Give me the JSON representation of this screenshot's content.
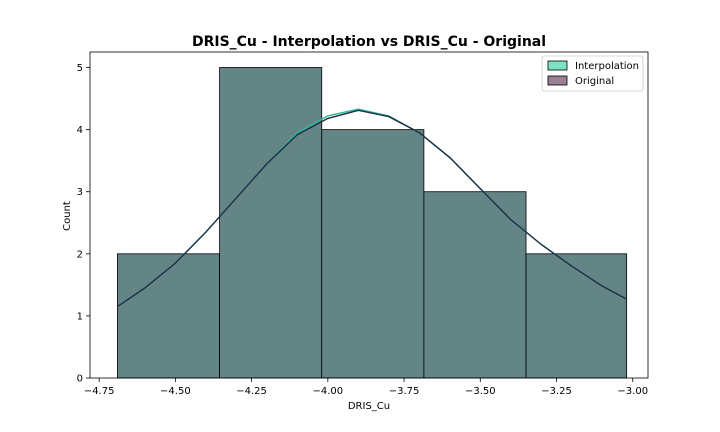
{
  "chart_data": {
    "type": "bar",
    "title": "DRIS_Cu - Interpolation vs DRIS_Cu - Original",
    "xlabel": "DRIS_Cu",
    "ylabel": "Count",
    "xlim": [
      -4.78,
      -2.95
    ],
    "ylim": [
      0,
      5.25
    ],
    "x_ticks": [
      -4.75,
      -4.5,
      -4.25,
      -4.0,
      -3.75,
      -3.5,
      -3.25,
      -3.0
    ],
    "x_tick_labels": [
      "−4.75",
      "−4.50",
      "−4.25",
      "−4.00",
      "−3.75",
      "−3.50",
      "−3.25",
      "−3.00"
    ],
    "y_ticks": [
      0,
      1,
      2,
      3,
      4,
      5
    ],
    "y_tick_labels": [
      "0",
      "1",
      "2",
      "3",
      "4",
      "5"
    ],
    "legend_position": "top-right",
    "grid": false,
    "bin_edges": [
      -4.69,
      -4.355,
      -4.02,
      -3.685,
      -3.35,
      -3.02
    ],
    "series": [
      {
        "name": "Interpolation",
        "color": "#7de2c4",
        "counts": [
          2,
          5,
          4,
          3,
          2
        ],
        "kde": {
          "x": [
            -4.69,
            -4.6,
            -4.5,
            -4.4,
            -4.3,
            -4.2,
            -4.1,
            -4.0,
            -3.9,
            -3.8,
            -3.7,
            -3.6,
            -3.5,
            -3.4,
            -3.3,
            -3.2,
            -3.1,
            -3.02
          ],
          "y": [
            1.15,
            1.45,
            1.85,
            2.35,
            2.9,
            3.45,
            3.95,
            4.22,
            4.33,
            4.22,
            3.95,
            3.55,
            3.05,
            2.55,
            2.15,
            1.8,
            1.48,
            1.27
          ]
        }
      },
      {
        "name": "Original",
        "color": "#9a7f95",
        "counts": [
          2,
          5,
          4,
          3,
          2
        ],
        "kde": {
          "x": [
            -4.69,
            -4.6,
            -4.5,
            -4.4,
            -4.3,
            -4.2,
            -4.1,
            -4.0,
            -3.9,
            -3.8,
            -3.7,
            -3.6,
            -3.5,
            -3.4,
            -3.3,
            -3.2,
            -3.1,
            -3.02
          ],
          "y": [
            1.15,
            1.45,
            1.85,
            2.35,
            2.9,
            3.45,
            3.92,
            4.18,
            4.31,
            4.21,
            3.95,
            3.55,
            3.05,
            2.55,
            2.15,
            1.8,
            1.48,
            1.27
          ]
        }
      }
    ],
    "overlap_color": "#648586",
    "line_color": "#1d2d46"
  }
}
